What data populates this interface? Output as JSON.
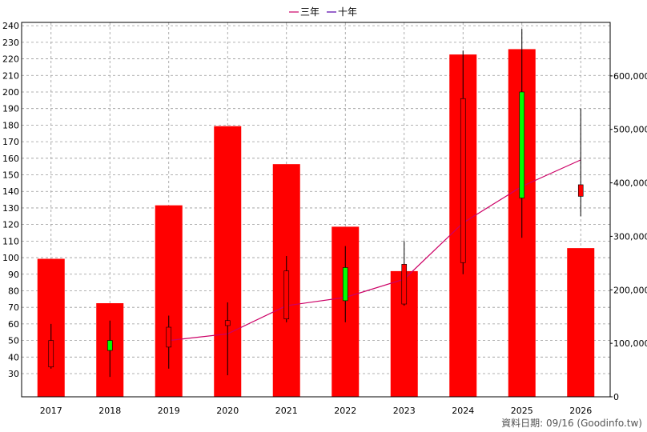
{
  "chart_data": {
    "type": "candlestick+bar",
    "legend": [
      {
        "label": "三年",
        "color": "#cc0066"
      },
      {
        "label": "十年",
        "color": "#5500aa"
      }
    ],
    "years": [
      "2017",
      "2018",
      "2019",
      "2020",
      "2021",
      "2022",
      "2023",
      "2024",
      "2025",
      "2026"
    ],
    "price_axis": {
      "ticks": [
        30,
        40,
        50,
        60,
        70,
        80,
        90,
        100,
        110,
        120,
        130,
        140,
        150,
        160,
        170,
        180,
        190,
        200,
        210,
        220,
        230,
        240
      ],
      "min": 16,
      "max": 242
    },
    "candles": [
      {
        "year": "2017",
        "open": 50,
        "close": 34,
        "high": 60,
        "low": 33
      },
      {
        "year": "2018",
        "open": 44,
        "close": 50,
        "high": 62,
        "low": 28
      },
      {
        "year": "2019",
        "open": 58,
        "close": 46,
        "high": 65,
        "low": 33
      },
      {
        "year": "2020",
        "open": 62,
        "close": 59,
        "high": 73,
        "low": 29
      },
      {
        "year": "2021",
        "open": 92,
        "close": 63,
        "high": 101,
        "low": 61
      },
      {
        "year": "2022",
        "open": 74,
        "close": 94,
        "high": 107,
        "low": 61
      },
      {
        "year": "2023",
        "open": 96,
        "close": 72,
        "high": 110,
        "low": 71
      },
      {
        "year": "2024",
        "open": 196,
        "close": 97,
        "high": 225,
        "low": 90
      },
      {
        "year": "2025",
        "open": 136,
        "close": 200,
        "high": 238,
        "low": 112
      },
      {
        "year": "2026",
        "open": 144,
        "close": 137,
        "high": 190,
        "low": 125
      }
    ],
    "line_three_year": {
      "years": [
        "2019",
        "2020",
        "2021",
        "2022",
        "2023",
        "2024",
        "2025",
        "2026"
      ],
      "values": [
        50,
        54,
        71,
        76,
        87,
        121,
        143,
        159
      ]
    },
    "volume_axis": {
      "ticks": [
        0,
        100000,
        200000,
        300000,
        400000,
        500000,
        600000
      ],
      "tick_labels": [
        "0",
        "100,000",
        "200,000",
        "300,000",
        "400,000",
        "500,000",
        "600,000"
      ],
      "max": 700000
    },
    "volumes": [
      258000,
      175000,
      358000,
      506000,
      435000,
      318000,
      235000,
      640000,
      650000,
      278000
    ],
    "colors": {
      "up": "#00ff00",
      "down": "#ff0000",
      "bar": "#ff0000",
      "grid": "#999999",
      "wick": "#000000"
    }
  },
  "footer": "資料日期: 09/16 (Goodinfo.tw)"
}
